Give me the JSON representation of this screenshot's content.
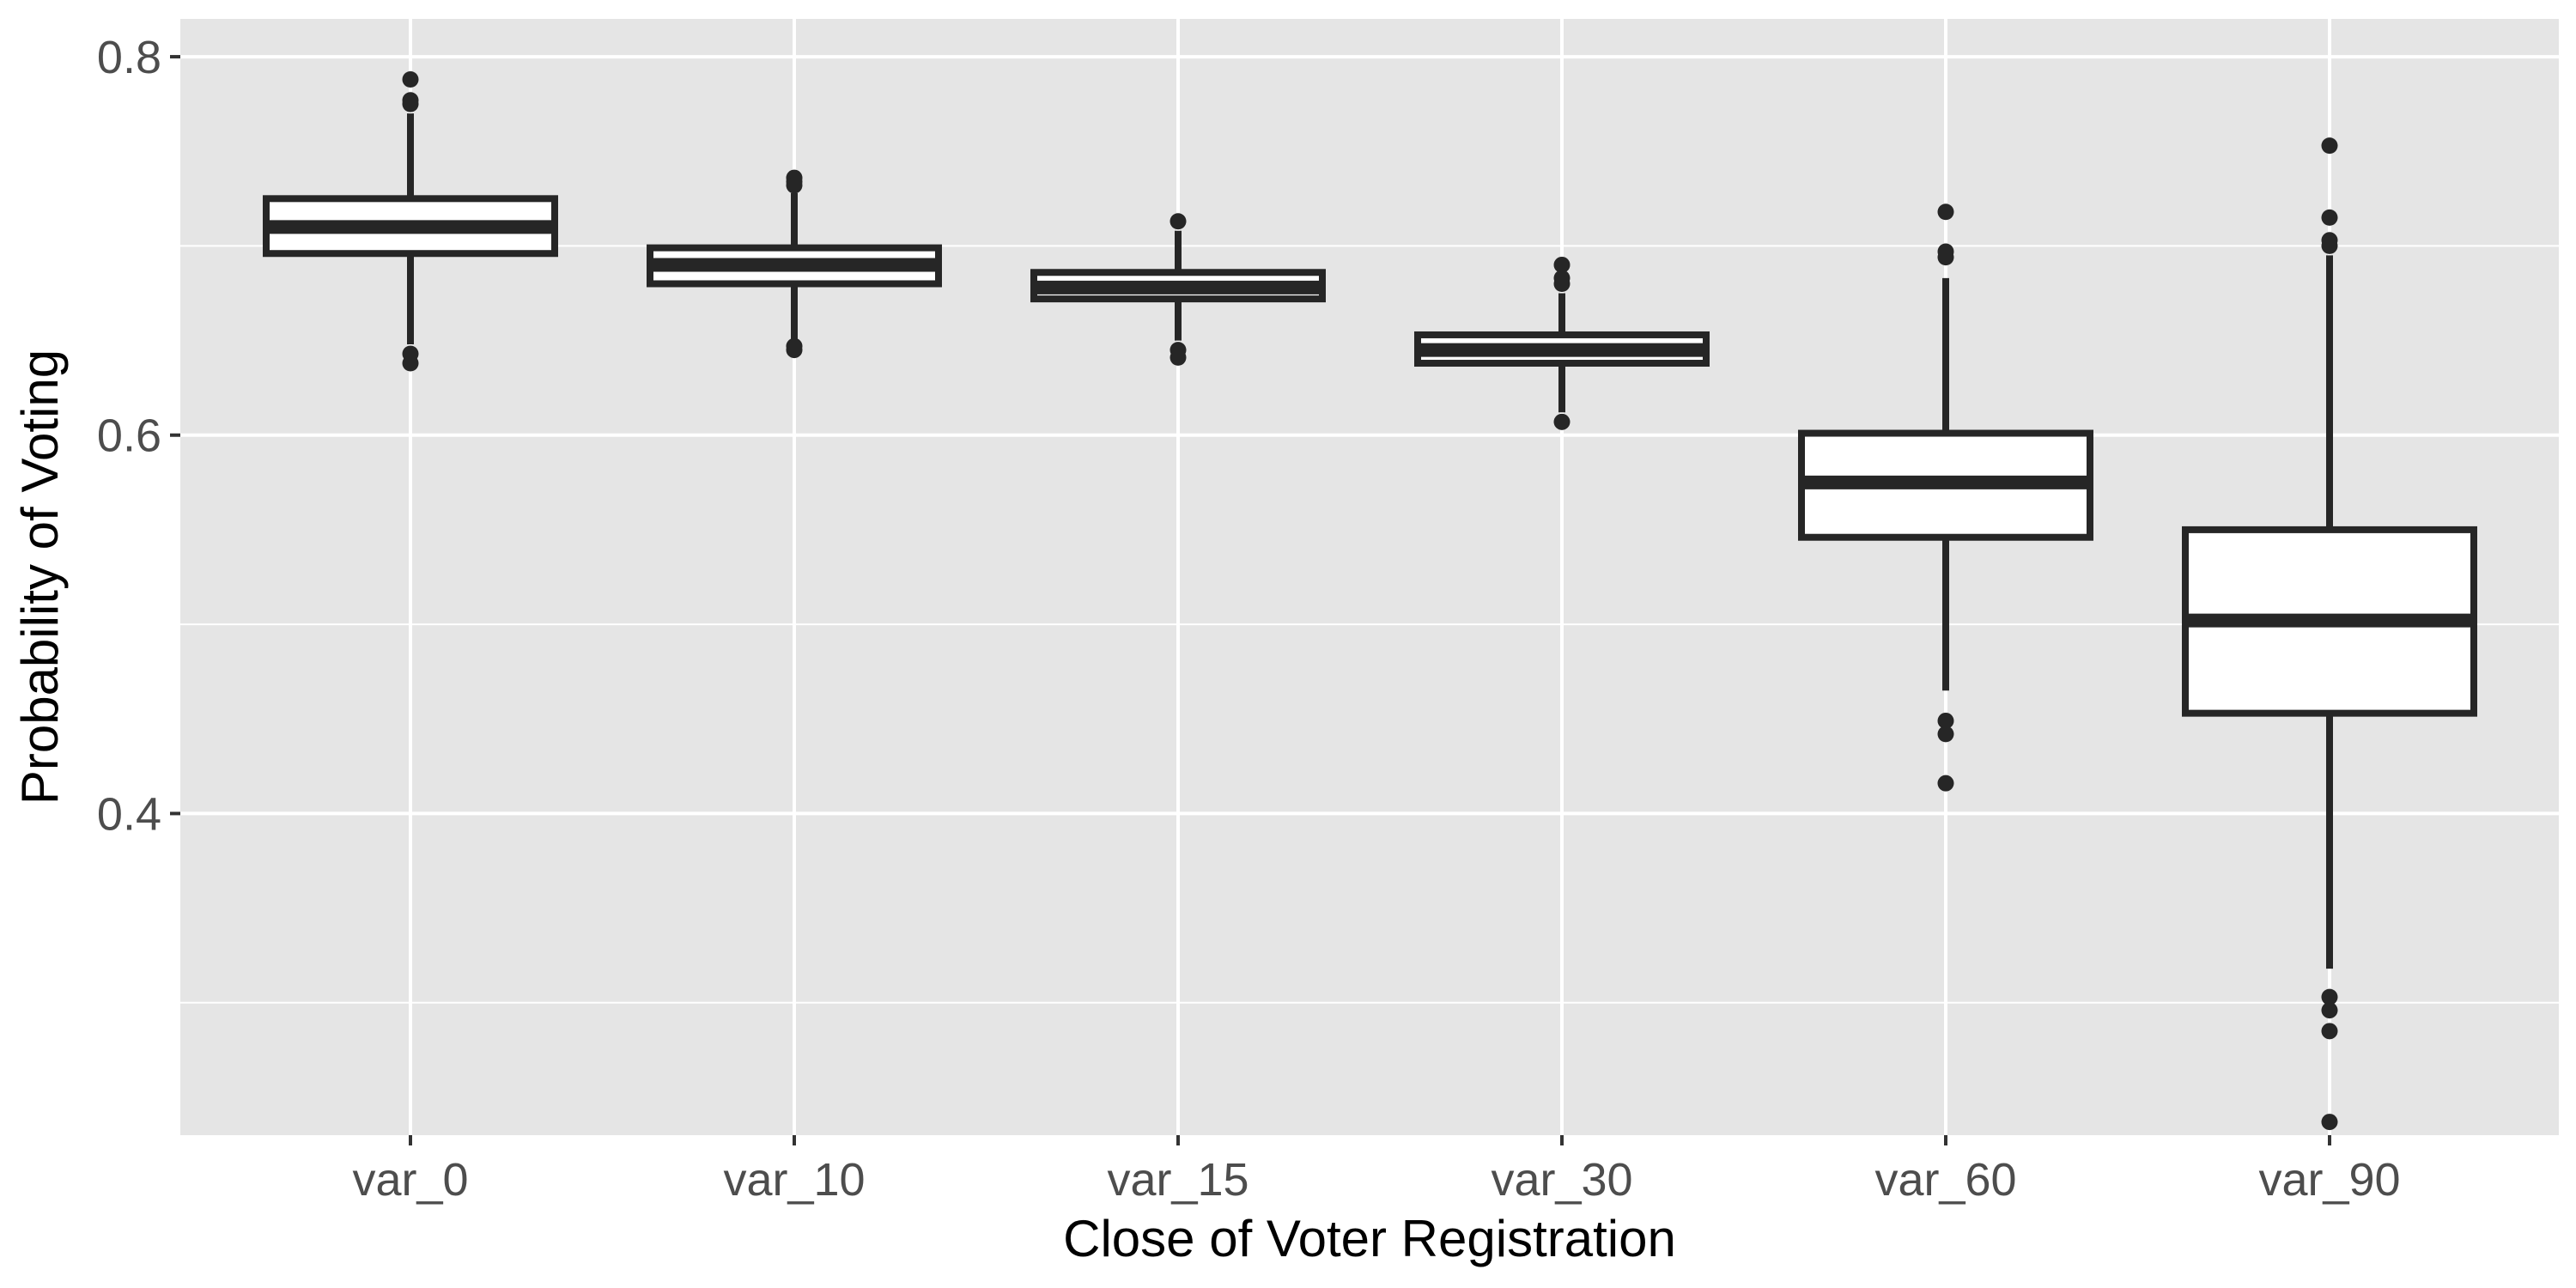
{
  "chart_data": {
    "type": "boxplot",
    "title": "",
    "xlabel": "Close of Voter Registration",
    "ylabel": "Probability of Voting",
    "categories": [
      "var_0",
      "var_10",
      "var_15",
      "var_30",
      "var_60",
      "var_90"
    ],
    "ylim": [
      0.23,
      0.82
    ],
    "y_ticks": [
      0.4,
      0.6,
      0.8
    ],
    "y_tick_labels": [
      "0.4",
      "0.6",
      "0.8"
    ],
    "grid": true,
    "legend": "none",
    "boxes": [
      {
        "category": "var_0",
        "whisker_low": 0.648,
        "q1": 0.696,
        "median": 0.71,
        "q3": 0.725,
        "whisker_high": 0.77,
        "outliers": [
          0.788,
          0.777,
          0.775,
          0.643,
          0.638
        ]
      },
      {
        "category": "var_10",
        "whisker_low": 0.65,
        "q1": 0.68,
        "median": 0.69,
        "q3": 0.699,
        "whisker_high": 0.728,
        "outliers": [
          0.736,
          0.734,
          0.732,
          0.647,
          0.645
        ]
      },
      {
        "category": "var_15",
        "whisker_low": 0.65,
        "q1": 0.672,
        "median": 0.678,
        "q3": 0.686,
        "whisker_high": 0.708,
        "outliers": [
          0.713,
          0.645,
          0.641
        ]
      },
      {
        "category": "var_30",
        "whisker_low": 0.612,
        "q1": 0.638,
        "median": 0.645,
        "q3": 0.653,
        "whisker_high": 0.675,
        "outliers": [
          0.69,
          0.683,
          0.68,
          0.607
        ]
      },
      {
        "category": "var_60",
        "whisker_low": 0.465,
        "q1": 0.546,
        "median": 0.575,
        "q3": 0.601,
        "whisker_high": 0.683,
        "outliers": [
          0.718,
          0.697,
          0.694,
          0.449,
          0.442,
          0.416
        ]
      },
      {
        "category": "var_90",
        "whisker_low": 0.318,
        "q1": 0.453,
        "median": 0.502,
        "q3": 0.55,
        "whisker_high": 0.695,
        "outliers": [
          0.753,
          0.715,
          0.703,
          0.7,
          0.303,
          0.296,
          0.285,
          0.237
        ]
      }
    ],
    "colors": {
      "panel_background": "#e5e5e5",
      "grid_line": "#ffffff",
      "box_fill": "#ffffff",
      "box_stroke": "#262626",
      "outlier": "#262626"
    }
  }
}
